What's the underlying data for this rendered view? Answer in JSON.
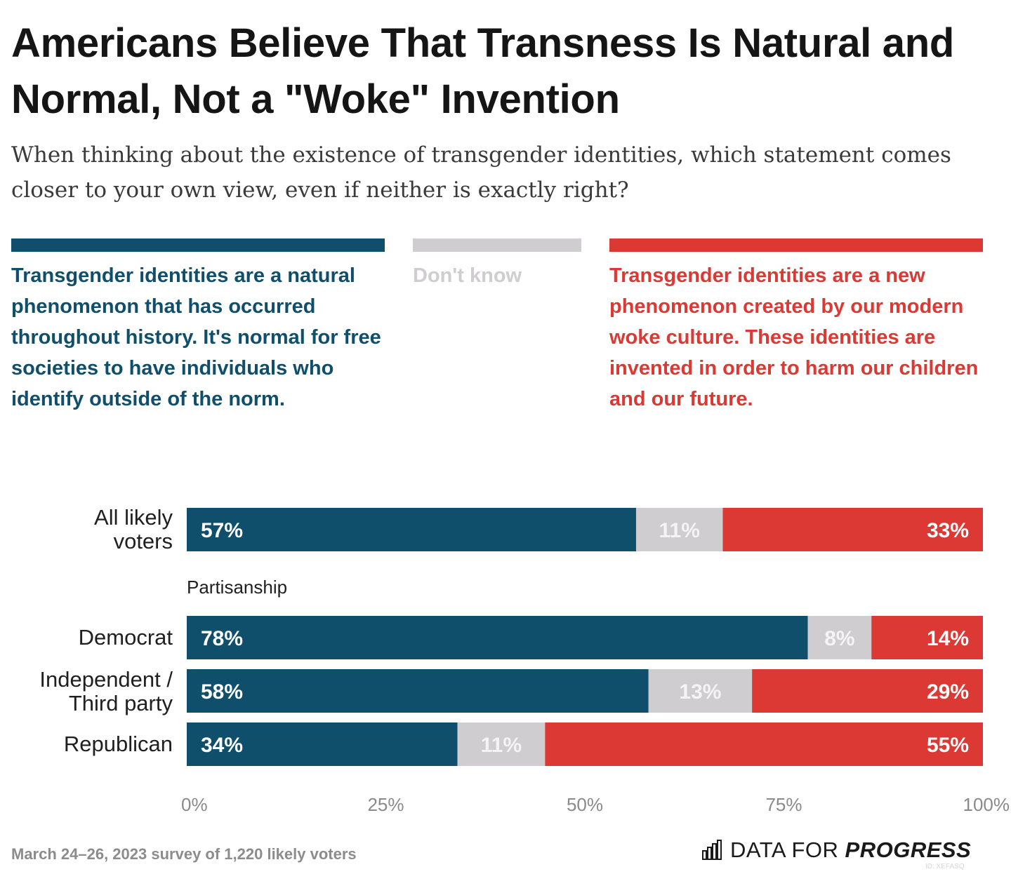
{
  "title": "Americans Believe That Transness Is Natural and Normal, Not a \"Woke\" Invention",
  "subtitle": "When thinking about the existence of transgender identities, which statement comes closer to your own view, even if neither is exactly right?",
  "legend": [
    {
      "label": "Transgender identities are a natural phenomenon that has occurred throughout history. It's normal for free societies to have individuals who identify outside of the norm.",
      "color": "#0f4f6c"
    },
    {
      "label": "Don't know",
      "color": "#cfcdcf"
    },
    {
      "label": "Transgender identities are a new phenomenon created by our modern woke culture. These identities are invented in order to harm our children and our future.",
      "color": "#dc3935"
    }
  ],
  "group_label": "Partisanship",
  "row_labels": [
    [
      "All likely",
      "voters"
    ],
    [
      "Democrat"
    ],
    [
      "Independent /",
      "Third party"
    ],
    [
      "Republican"
    ]
  ],
  "footnote": "March 24–26, 2023 survey of 1,220 likely voters",
  "brand": {
    "prefix": "DATA FOR ",
    "emphasis": "PROGRESS"
  },
  "chart_id": "ID: XEFASQ",
  "chart_data": {
    "type": "bar",
    "orientation": "horizontal",
    "stacked": true,
    "categories": [
      "All likely voters",
      "Democrat",
      "Independent / Third party",
      "Republican"
    ],
    "series": [
      {
        "name": "Transgender identities are a natural phenomenon that has occurred throughout history. It's normal for free societies to have individuals who identify outside of the norm.",
        "values": [
          57,
          78,
          58,
          34
        ],
        "color": "#0f4f6c"
      },
      {
        "name": "Don't know",
        "values": [
          11,
          8,
          13,
          11
        ],
        "color": "#cfcdcf"
      },
      {
        "name": "Transgender identities are a new phenomenon created by our modern woke culture. These identities are invented in order to harm our children and our future.",
        "values": [
          33,
          14,
          29,
          55
        ],
        "color": "#dc3935"
      }
    ],
    "labels": [
      [
        "57%",
        "11%",
        "33%"
      ],
      [
        "78%",
        "8%",
        "14%"
      ],
      [
        "58%",
        "13%",
        "29%"
      ],
      [
        "34%",
        "11%",
        "55%"
      ]
    ],
    "xticks": [
      0,
      25,
      50,
      75,
      100
    ],
    "xtick_labels": [
      "0%",
      "25%",
      "50%",
      "75%",
      "100%"
    ],
    "xlim": [
      0,
      100
    ],
    "grid": false,
    "legend_position": "top"
  }
}
